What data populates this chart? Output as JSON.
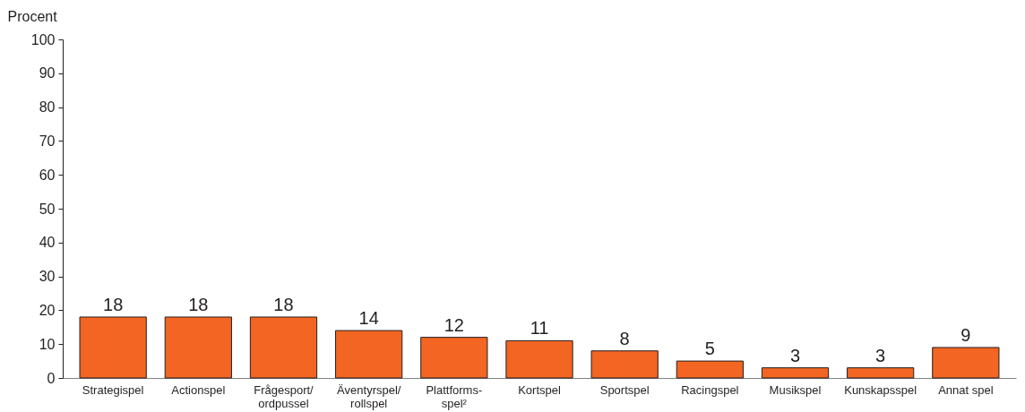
{
  "chart_data": {
    "type": "bar",
    "ylabel": "Procent",
    "categories": [
      "Strategispel",
      "Actionspel",
      "Frågesport/\nordpussel",
      "Äventyrspel/\nrollspel",
      "Plattforms-\nspel²",
      "Kortspel",
      "Sportspel",
      "Racingspel",
      "Musikspel",
      "Kunskapsspel",
      "Annat spel"
    ],
    "values": [
      18,
      18,
      18,
      14,
      12,
      11,
      8,
      5,
      3,
      3,
      9
    ],
    "color": "#f26522",
    "ylim": [
      0,
      100
    ],
    "yticks": [
      0,
      10,
      20,
      30,
      40,
      50,
      60,
      70,
      80,
      90,
      100
    ],
    "data_labels": true
  }
}
